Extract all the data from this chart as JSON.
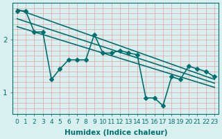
{
  "xlabel": "Humidex (Indice chaleur)",
  "ylabel": "",
  "bg_color": "#d8f0f0",
  "line_color": "#007070",
  "grid_color": "#e8a0a0",
  "xlim": [
    -0.5,
    23.5
  ],
  "ylim": [
    0.6,
    2.7
  ],
  "yticks": [
    1,
    2
  ],
  "xticks": [
    0,
    1,
    2,
    3,
    4,
    5,
    6,
    7,
    8,
    9,
    10,
    11,
    12,
    13,
    14,
    15,
    16,
    17,
    18,
    19,
    20,
    21,
    22,
    23
  ],
  "data_x": [
    0,
    1,
    2,
    3,
    4,
    5,
    6,
    7,
    8,
    9,
    10,
    11,
    12,
    13,
    14,
    15,
    16,
    17,
    18,
    19,
    20,
    21,
    22,
    23
  ],
  "data_y": [
    2.55,
    2.55,
    2.15,
    2.15,
    1.25,
    1.45,
    1.62,
    1.62,
    1.62,
    2.1,
    1.75,
    1.75,
    1.8,
    1.75,
    1.72,
    0.9,
    0.9,
    0.75,
    1.3,
    1.25,
    1.5,
    1.45,
    1.4,
    1.3
  ],
  "reg_lines": [
    {
      "x0": 0,
      "y0": 2.58,
      "x1": 23,
      "y1": 1.25
    },
    {
      "x0": 0,
      "y0": 2.4,
      "x1": 23,
      "y1": 1.18
    },
    {
      "x0": 0,
      "y0": 2.25,
      "x1": 23,
      "y1": 1.1
    }
  ],
  "marker_size": 3,
  "line_width": 1.2,
  "tick_fontsize": 6.5,
  "label_fontsize": 7.5
}
